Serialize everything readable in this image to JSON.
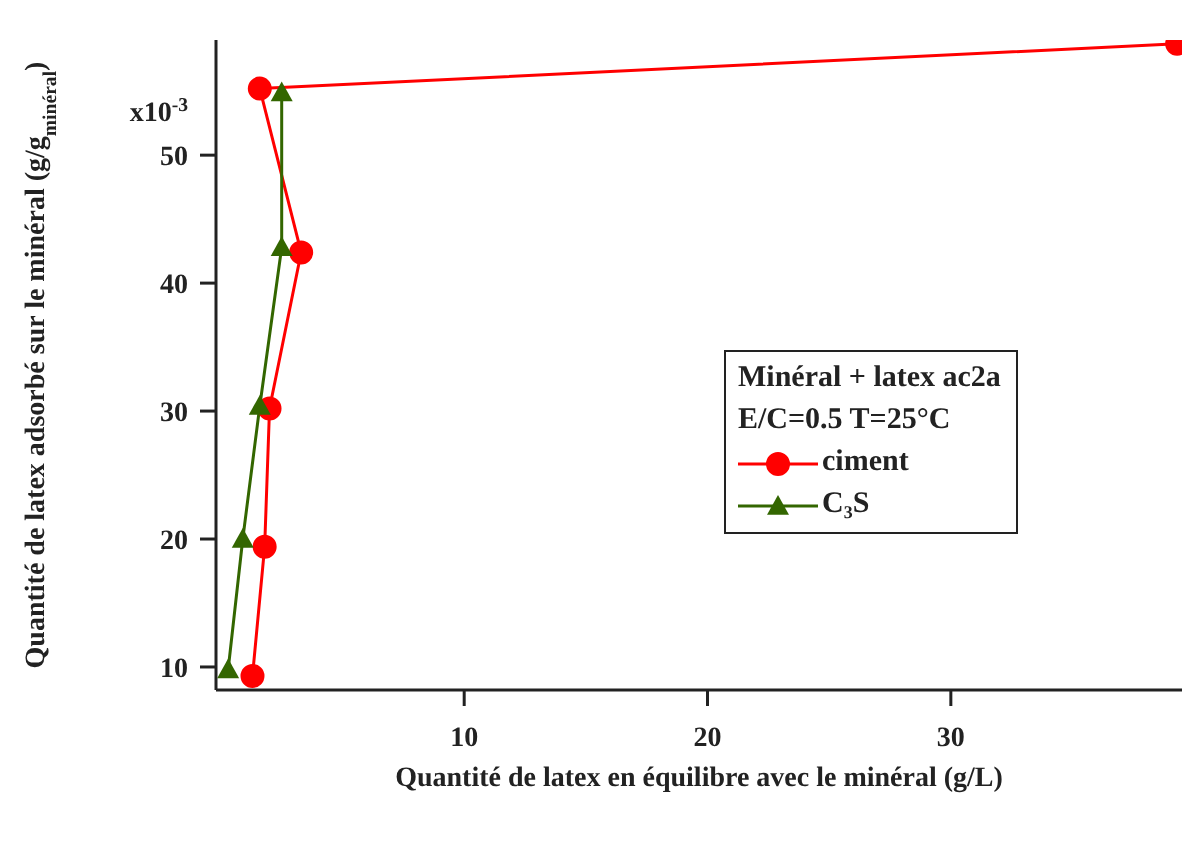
{
  "chart_data": {
    "type": "line",
    "xlabel": "Quantité de latex en équilibre avec le minéral (g/L)",
    "ylabel": "Quantité de latex adsorbé sur le minéral (g/g$_{minéral}$)",
    "legend_title": "Minéral + latex ac2a\nE/C=0.5 T=25°C",
    "legend": "right",
    "marker": "circle",
    "line_style": "solid",
    "xlim": [
      -0.2,
      39.5
    ],
    "xticks": [
      10,
      20,
      30
    ],
    "ylim": [
      8.2,
      59
    ],
    "yticks": [
      10,
      20,
      30,
      40,
      50
    ],
    "annotations": [
      "x10$^{-3}$"
    ],
    "series": [
      {
        "name": "ciment",
        "color": "#ff0000",
        "x": [
          1.3,
          1.8,
          2.0,
          3.3,
          1.6,
          39.3
        ],
        "values": [
          9.3,
          19.4,
          30.2,
          42.4,
          55.2,
          58.7
        ]
      },
      {
        "name": "C₃S",
        "color": "#336600",
        "marker": "triangle",
        "x": [
          0.3,
          0.9,
          1.6,
          2.5,
          2.5
        ],
        "values": [
          9.8,
          20.0,
          30.4,
          42.8,
          54.9
        ]
      }
    ]
  }
}
